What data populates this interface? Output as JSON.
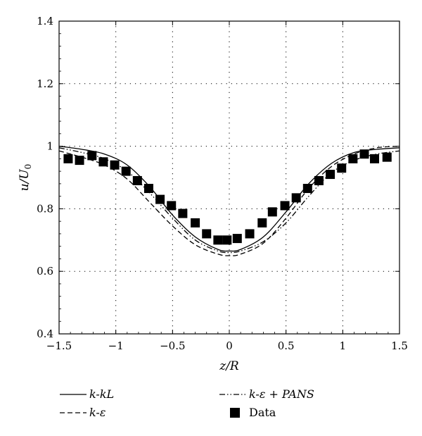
{
  "chart_data": {
    "type": "line",
    "title": "",
    "xlabel": "z/R",
    "ylabel": "u/U0",
    "xlim": [
      -1.5,
      1.5
    ],
    "ylim": [
      0.4,
      1.4
    ],
    "xticks": [
      -1.5,
      -1,
      -0.5,
      0,
      0.5,
      1,
      1.5
    ],
    "yticks": [
      0.4,
      0.6,
      0.8,
      1,
      1.2,
      1.4
    ],
    "xtick_labels": [
      "−1.5",
      "−1",
      "−0.5",
      "0",
      "0.5",
      "1",
      "1.5"
    ],
    "ytick_labels": [
      "0.4",
      "0.6",
      "0.8",
      "1",
      "1.2",
      "1.4"
    ],
    "grid": true,
    "legend_position": "below",
    "series": [
      {
        "name": "k-kL",
        "style": "solid",
        "x": [
          -1.5,
          -1.3,
          -1.1,
          -0.9,
          -0.7,
          -0.5,
          -0.3,
          -0.1,
          0,
          0.1,
          0.3,
          0.5,
          0.7,
          0.9,
          1.1,
          1.3,
          1.5
        ],
        "y": [
          1.0,
          0.99,
          0.975,
          0.94,
          0.87,
          0.78,
          0.71,
          0.67,
          0.665,
          0.67,
          0.71,
          0.79,
          0.88,
          0.945,
          0.98,
          0.99,
          0.995
        ]
      },
      {
        "name": "k-ε",
        "style": "dashed",
        "x": [
          -1.5,
          -1.3,
          -1.1,
          -0.9,
          -0.7,
          -0.5,
          -0.3,
          -0.1,
          0,
          0.1,
          0.3,
          0.5,
          0.7,
          0.9,
          1.1,
          1.3,
          1.5
        ],
        "y": [
          0.985,
          0.965,
          0.94,
          0.895,
          0.82,
          0.745,
          0.685,
          0.655,
          0.65,
          0.655,
          0.69,
          0.77,
          0.865,
          0.935,
          0.975,
          0.995,
          1.0
        ]
      },
      {
        "name": "k-ε + PANS",
        "style": "dashdotdot",
        "x": [
          -1.5,
          -1.3,
          -1.1,
          -0.9,
          -0.7,
          -0.5,
          -0.3,
          -0.1,
          0,
          0.1,
          0.3,
          0.5,
          0.7,
          0.9,
          1.1,
          1.3,
          1.5
        ],
        "y": [
          0.995,
          0.98,
          0.96,
          0.92,
          0.85,
          0.77,
          0.7,
          0.665,
          0.66,
          0.665,
          0.695,
          0.755,
          0.84,
          0.915,
          0.955,
          0.975,
          0.985
        ]
      },
      {
        "name": "Data",
        "style": "markers",
        "x": [
          -1.42,
          -1.32,
          -1.21,
          -1.11,
          -1.01,
          -0.91,
          -0.81,
          -0.71,
          -0.61,
          -0.51,
          -0.41,
          -0.3,
          -0.2,
          -0.1,
          -0.02,
          0.07,
          0.18,
          0.29,
          0.38,
          0.49,
          0.59,
          0.69,
          0.79,
          0.89,
          0.99,
          1.09,
          1.19,
          1.28,
          1.39
        ],
        "y": [
          0.96,
          0.955,
          0.97,
          0.95,
          0.94,
          0.92,
          0.89,
          0.865,
          0.83,
          0.81,
          0.785,
          0.755,
          0.72,
          0.7,
          0.7,
          0.705,
          0.72,
          0.755,
          0.79,
          0.81,
          0.835,
          0.865,
          0.89,
          0.91,
          0.93,
          0.96,
          0.975,
          0.96,
          0.965
        ]
      }
    ]
  }
}
